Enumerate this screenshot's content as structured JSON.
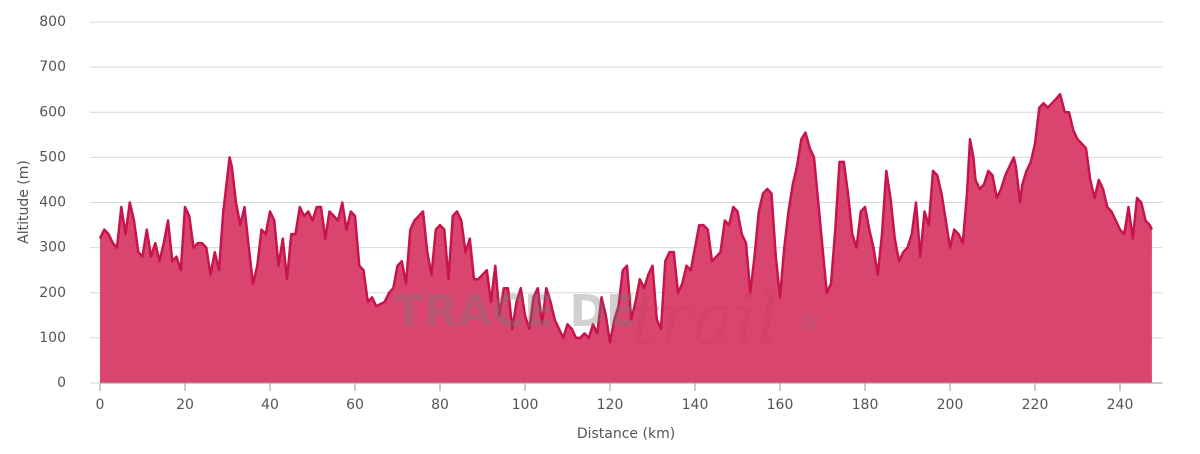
{
  "chart_data": {
    "type": "area",
    "x_label": "Distance (km)",
    "y_label": "Altitude (m)",
    "watermark": [
      "TRACE DE",
      "trail",
      ".fr"
    ],
    "color": "#c8144c",
    "fill": "#d9456f",
    "xlim": [
      0,
      250
    ],
    "xticks": [
      0,
      20,
      40,
      60,
      80,
      100,
      120,
      140,
      160,
      180,
      200,
      220,
      240
    ],
    "ylim": [
      0,
      800
    ],
    "yticks": [
      0,
      100,
      200,
      300,
      400,
      500,
      600,
      700,
      800
    ],
    "grid": true,
    "x": [
      0,
      1,
      2,
      3,
      4,
      5,
      6,
      7,
      8,
      9,
      10,
      11,
      12,
      13,
      14,
      15,
      16,
      17,
      18,
      19,
      20,
      21,
      22,
      23,
      24,
      25,
      26,
      27,
      28,
      29,
      30,
      30.5,
      31,
      32,
      33,
      34,
      35,
      36,
      37,
      38,
      39,
      40,
      41,
      42,
      43,
      44,
      45,
      46,
      47,
      48,
      49,
      50,
      51,
      52,
      53,
      54,
      55,
      56,
      57,
      58,
      59,
      60,
      61,
      62,
      63,
      64,
      65,
      66,
      67,
      68,
      69,
      70,
      71,
      72,
      73,
      74,
      75,
      76,
      77,
      78,
      79,
      80,
      81,
      82,
      83,
      84,
      85,
      86,
      87,
      88,
      89,
      90,
      91,
      92,
      93,
      94,
      95,
      96,
      97,
      98,
      99,
      100,
      101,
      102,
      103,
      104,
      105,
      106,
      107,
      108,
      109,
      110,
      111,
      112,
      113,
      114,
      115,
      116,
      117,
      118,
      119,
      120,
      121,
      122,
      123,
      124,
      125,
      126,
      127,
      128,
      129,
      130,
      131,
      132,
      133,
      134,
      135,
      136,
      137,
      138,
      139,
      140,
      141,
      142,
      143,
      144,
      145,
      146,
      147,
      148,
      149,
      150,
      151,
      152,
      153,
      154,
      155,
      156,
      157,
      158,
      159,
      160,
      161,
      162,
      163,
      164,
      165,
      166,
      167,
      168,
      169,
      170,
      171,
      172,
      173,
      174,
      175,
      176,
      177,
      178,
      179,
      180,
      181,
      182,
      183,
      184,
      185,
      186,
      187,
      188,
      189,
      190,
      191,
      192,
      193,
      194,
      195,
      196,
      197,
      198,
      199,
      200,
      201,
      202,
      203,
      204,
      204.7,
      205.5,
      206,
      207,
      208,
      209,
      210,
      211,
      212,
      213,
      214,
      215,
      215.5,
      216.5,
      217,
      218,
      219,
      220,
      221,
      222,
      223,
      224,
      225,
      225.9,
      227,
      228,
      229,
      230,
      231,
      232,
      233,
      234,
      235,
      236,
      237,
      238,
      239,
      240,
      241,
      242,
      243,
      244,
      245,
      246,
      247,
      247.5
    ],
    "values": [
      320,
      340,
      330,
      310,
      300,
      390,
      330,
      400,
      360,
      290,
      280,
      340,
      280,
      310,
      270,
      310,
      360,
      270,
      280,
      250,
      390,
      370,
      300,
      310,
      310,
      300,
      240,
      290,
      250,
      380,
      460,
      500,
      480,
      400,
      350,
      390,
      300,
      220,
      260,
      340,
      330,
      380,
      360,
      260,
      320,
      230,
      330,
      330,
      390,
      370,
      380,
      360,
      390,
      390,
      320,
      380,
      370,
      360,
      400,
      340,
      380,
      370,
      260,
      250,
      180,
      190,
      170,
      175,
      180,
      200,
      210,
      260,
      270,
      220,
      340,
      360,
      370,
      380,
      290,
      240,
      340,
      350,
      340,
      230,
      370,
      380,
      360,
      290,
      320,
      230,
      230,
      240,
      250,
      180,
      260,
      150,
      210,
      210,
      120,
      180,
      210,
      150,
      120,
      190,
      210,
      130,
      210,
      180,
      140,
      120,
      100,
      130,
      120,
      100,
      100,
      110,
      100,
      130,
      110,
      190,
      150,
      90,
      140,
      170,
      250,
      260,
      140,
      180,
      230,
      210,
      240,
      260,
      140,
      120,
      270,
      290,
      290,
      200,
      220,
      260,
      250,
      300,
      350,
      350,
      340,
      270,
      280,
      290,
      360,
      350,
      390,
      380,
      330,
      310,
      200,
      280,
      380,
      420,
      430,
      420,
      280,
      190,
      300,
      380,
      440,
      480,
      540,
      555,
      520,
      500,
      400,
      300,
      200,
      220,
      340,
      490,
      490,
      420,
      330,
      300,
      380,
      390,
      340,
      300,
      240,
      330,
      470,
      410,
      320,
      270,
      290,
      300,
      330,
      400,
      280,
      380,
      350,
      470,
      460,
      420,
      360,
      300,
      340,
      330,
      310,
      420,
      540,
      500,
      450,
      430,
      440,
      470,
      460,
      410,
      430,
      460,
      480,
      500,
      480,
      400,
      440,
      470,
      490,
      530,
      610,
      620,
      610,
      620,
      630,
      640,
      600,
      600,
      560,
      540,
      530,
      520,
      450,
      410,
      450,
      430,
      390,
      380,
      360,
      340,
      330,
      390,
      320,
      410,
      400,
      360,
      350,
      340
    ]
  }
}
